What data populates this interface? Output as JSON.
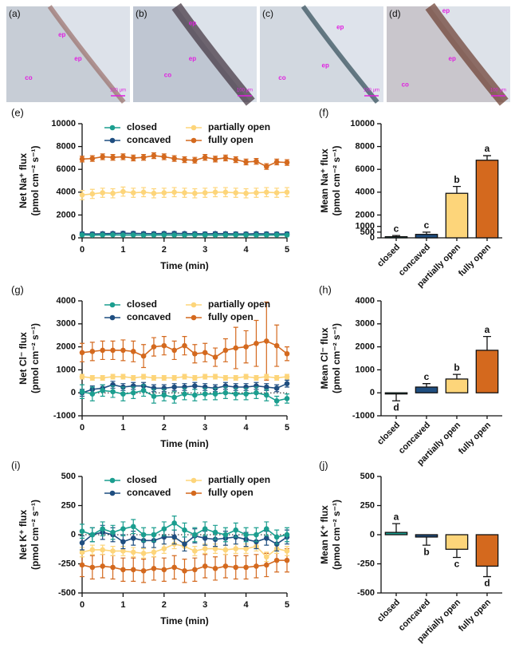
{
  "panels": [
    {
      "label": "(a)",
      "annotations": [
        "ep",
        "ep",
        "co"
      ],
      "scale": "100 μm"
    },
    {
      "label": "(b)",
      "annotations": [
        "ep",
        "ep",
        "co"
      ],
      "scale": "100 μm"
    },
    {
      "label": "(c)",
      "annotations": [
        "ep",
        "ep",
        "co"
      ],
      "scale": "100 μm"
    },
    {
      "label": "(d)",
      "annotations": [
        "ep",
        "ep",
        "co"
      ],
      "scale": "100 μm"
    }
  ],
  "chart_data": [
    {
      "type": "line",
      "panel_label": "(e)",
      "ylabel": [
        "Net Na⁺ flux",
        "(pmol cm⁻² s⁻¹)"
      ],
      "xlabel": "Time (min)",
      "x": [
        0,
        0.25,
        0.5,
        0.75,
        1,
        1.25,
        1.5,
        1.75,
        2,
        2.25,
        2.5,
        2.75,
        3,
        3.25,
        3.5,
        3.75,
        4,
        4.25,
        4.5,
        4.75,
        5
      ],
      "xlim": [
        0,
        5
      ],
      "xticks": [
        0,
        1,
        2,
        3,
        4,
        5
      ],
      "ylim": [
        0,
        10000
      ],
      "yticks": [
        0,
        2000,
        4000,
        6000,
        8000,
        10000
      ],
      "zero_line": false,
      "series": [
        {
          "name": "closed",
          "color": "#1b9e8f",
          "values": [
            250,
            230,
            250,
            260,
            240,
            250,
            230,
            240,
            250,
            240,
            230,
            250,
            240,
            230,
            240,
            250,
            240,
            230,
            240,
            250,
            240
          ],
          "errors": [
            80,
            80,
            80,
            80,
            80,
            80,
            80,
            80,
            80,
            80,
            80,
            80,
            80,
            80,
            80,
            80,
            80,
            80,
            80,
            80,
            80
          ]
        },
        {
          "name": "concaved",
          "color": "#1f4e80",
          "values": [
            350,
            340,
            360,
            380,
            400,
            390,
            370,
            360,
            380,
            390,
            370,
            360,
            350,
            370,
            360,
            350,
            340,
            360,
            350,
            340,
            350
          ],
          "errors": [
            150,
            150,
            150,
            150,
            150,
            150,
            150,
            150,
            150,
            150,
            150,
            150,
            150,
            150,
            150,
            150,
            150,
            150,
            150,
            150,
            150
          ]
        },
        {
          "name": "partially open",
          "color": "#fdd57a",
          "values": [
            3750,
            3850,
            3950,
            3900,
            4050,
            3950,
            4000,
            3900,
            3950,
            4000,
            3950,
            3900,
            3950,
            4000,
            4000,
            3950,
            3900,
            3950,
            4000,
            3950,
            4000
          ],
          "errors": [
            400,
            400,
            400,
            400,
            400,
            400,
            400,
            400,
            400,
            400,
            400,
            400,
            400,
            400,
            400,
            400,
            400,
            400,
            400,
            400,
            400
          ]
        },
        {
          "name": "fully open",
          "color": "#d4691e",
          "values": [
            6900,
            6950,
            7100,
            7050,
            7100,
            7000,
            7050,
            7200,
            7100,
            6950,
            6850,
            6800,
            7050,
            6900,
            7000,
            6850,
            6650,
            6700,
            6250,
            6650,
            6600
          ],
          "errors": [
            250,
            250,
            250,
            250,
            250,
            250,
            250,
            250,
            250,
            250,
            250,
            250,
            250,
            250,
            250,
            250,
            250,
            250,
            250,
            250,
            250
          ]
        }
      ]
    },
    {
      "type": "bar",
      "panel_label": "(f)",
      "ylabel": [
        "Mean Na⁺ flux",
        "(pmol cm⁻² s⁻¹)"
      ],
      "categories": [
        "closed",
        "concaved",
        "partially open",
        "fully open"
      ],
      "values": [
        100,
        300,
        3900,
        6800
      ],
      "errors": [
        100,
        200,
        600,
        400
      ],
      "annotations": [
        "c",
        "c",
        "b",
        "a"
      ],
      "colors": [
        "#1b9e8f",
        "#1f4e80",
        "#fdd57a",
        "#d4691e"
      ],
      "ylim": [
        0,
        10000
      ],
      "yticks": [
        0,
        500,
        1000,
        2000,
        4000,
        6000,
        8000,
        10000
      ]
    },
    {
      "type": "line",
      "panel_label": "(g)",
      "ylabel": [
        "Net Cl⁻ flux",
        "(pmol cm⁻² s⁻¹)"
      ],
      "xlabel": "Time (min)",
      "x": [
        0,
        0.25,
        0.5,
        0.75,
        1,
        1.25,
        1.5,
        1.75,
        2,
        2.25,
        2.5,
        2.75,
        3,
        3.25,
        3.5,
        3.75,
        4,
        4.25,
        4.5,
        4.75,
        5
      ],
      "xlim": [
        0,
        5
      ],
      "xticks": [
        0,
        1,
        2,
        3,
        4,
        5
      ],
      "ylim": [
        -1000,
        4000
      ],
      "yticks": [
        -1000,
        0,
        1000,
        2000,
        3000,
        4000
      ],
      "zero_line": true,
      "series": [
        {
          "name": "closed",
          "color": "#1b9e8f",
          "values": [
            50,
            -50,
            100,
            50,
            -50,
            0,
            100,
            -150,
            -100,
            -200,
            -50,
            -100,
            -50,
            -50,
            0,
            -50,
            -50,
            0,
            -100,
            -350,
            -250
          ],
          "errors": [
            300,
            300,
            250,
            250,
            300,
            250,
            250,
            300,
            250,
            250,
            250,
            250,
            250,
            250,
            250,
            250,
            250,
            250,
            250,
            200,
            200
          ]
        },
        {
          "name": "concaved",
          "color": "#1f4e80",
          "values": [
            0,
            150,
            200,
            350,
            250,
            300,
            300,
            200,
            200,
            250,
            250,
            300,
            250,
            200,
            300,
            250,
            250,
            300,
            250,
            200,
            400
          ],
          "errors": [
            150,
            150,
            150,
            150,
            150,
            150,
            150,
            150,
            150,
            150,
            150,
            150,
            150,
            150,
            150,
            150,
            150,
            150,
            150,
            150,
            150
          ]
        },
        {
          "name": "partially open",
          "color": "#fdd57a",
          "values": [
            700,
            650,
            650,
            700,
            700,
            650,
            700,
            650,
            650,
            650,
            700,
            650,
            700,
            700,
            650,
            650,
            700,
            650,
            700,
            650,
            700
          ],
          "errors": [
            100,
            100,
            100,
            100,
            100,
            100,
            100,
            100,
            100,
            100,
            100,
            100,
            100,
            100,
            100,
            100,
            100,
            100,
            100,
            100,
            100
          ]
        },
        {
          "name": "fully open",
          "color": "#d4691e",
          "values": [
            1750,
            1800,
            1850,
            1850,
            1850,
            1800,
            1600,
            2000,
            2050,
            1850,
            2050,
            1700,
            1750,
            1550,
            1850,
            1950,
            2000,
            2150,
            2250,
            2050,
            1700
          ],
          "errors": [
            400,
            400,
            400,
            400,
            450,
            450,
            500,
            400,
            400,
            400,
            400,
            400,
            400,
            400,
            500,
            900,
            700,
            1000,
            1700,
            900,
            300
          ]
        }
      ]
    },
    {
      "type": "bar",
      "panel_label": "(h)",
      "ylabel": [
        "Mean Cl⁻ flux",
        "(pmol cm⁻² s⁻¹)"
      ],
      "categories": [
        "closed",
        "concaved",
        "partially open",
        "fully open"
      ],
      "values": [
        -50,
        250,
        600,
        1850
      ],
      "errors": [
        300,
        150,
        200,
        600
      ],
      "annotations": [
        "d",
        "c",
        "b",
        "a"
      ],
      "colors": [
        "#1b9e8f",
        "#1f4e80",
        "#fdd57a",
        "#d4691e"
      ],
      "ylim": [
        -1000,
        4000
      ],
      "yticks": [
        -1000,
        0,
        1000,
        2000,
        3000,
        4000
      ]
    },
    {
      "type": "line",
      "panel_label": "(i)",
      "ylabel": [
        "Net K⁺ flux",
        "(pmol cm⁻² s⁻¹)"
      ],
      "xlabel": "Time (min)",
      "x": [
        0,
        0.25,
        0.5,
        0.75,
        1,
        1.25,
        1.5,
        1.75,
        2,
        2.25,
        2.5,
        2.75,
        3,
        3.25,
        3.5,
        3.75,
        4,
        4.25,
        4.5,
        4.75,
        5
      ],
      "xlim": [
        0,
        5
      ],
      "xticks": [
        0,
        1,
        2,
        3,
        4,
        5
      ],
      "ylim": [
        -500,
        500
      ],
      "yticks": [
        -500,
        -250,
        0,
        250,
        500
      ],
      "zero_line": true,
      "series": [
        {
          "name": "closed",
          "color": "#1b9e8f",
          "values": [
            30,
            0,
            50,
            20,
            50,
            70,
            0,
            0,
            50,
            100,
            40,
            0,
            50,
            20,
            0,
            40,
            0,
            0,
            50,
            -20,
            0
          ],
          "errors": [
            60,
            60,
            60,
            60,
            60,
            60,
            60,
            60,
            60,
            60,
            60,
            60,
            60,
            60,
            60,
            60,
            60,
            60,
            60,
            60,
            60
          ]
        },
        {
          "name": "concaved",
          "color": "#1f4e80",
          "values": [
            -70,
            0,
            20,
            0,
            -60,
            -30,
            -50,
            -50,
            -20,
            -20,
            -80,
            -10,
            -30,
            -40,
            -30,
            -20,
            -40,
            -60,
            -30,
            -80,
            -20
          ],
          "errors": [
            60,
            60,
            60,
            60,
            60,
            60,
            60,
            60,
            60,
            60,
            60,
            60,
            60,
            60,
            60,
            60,
            60,
            60,
            60,
            60,
            60
          ]
        },
        {
          "name": "partially open",
          "color": "#fdd57a",
          "values": [
            -150,
            -130,
            -130,
            -140,
            -140,
            -150,
            -160,
            -150,
            -120,
            -80,
            -100,
            -140,
            -120,
            -120,
            -130,
            -120,
            -120,
            -100,
            -190,
            -120,
            -140
          ],
          "errors": [
            40,
            40,
            40,
            40,
            40,
            40,
            40,
            40,
            40,
            40,
            40,
            40,
            40,
            40,
            40,
            40,
            40,
            40,
            40,
            40,
            40
          ]
        },
        {
          "name": "fully open",
          "color": "#d4691e",
          "values": [
            -260,
            -280,
            -270,
            -280,
            -300,
            -300,
            -310,
            -290,
            -300,
            -280,
            -310,
            -300,
            -270,
            -290,
            -270,
            -280,
            -280,
            -270,
            -260,
            -220,
            -220
          ],
          "errors": [
            100,
            100,
            100,
            100,
            100,
            100,
            100,
            100,
            100,
            100,
            100,
            100,
            100,
            100,
            100,
            100,
            100,
            100,
            100,
            100,
            100
          ]
        }
      ]
    },
    {
      "type": "bar",
      "panel_label": "(j)",
      "ylabel": [
        "Mean K⁺ flux",
        "(pmol cm⁻² s⁻¹)"
      ],
      "categories": [
        "closed",
        "concaved",
        "partially open",
        "fully open"
      ],
      "values": [
        20,
        -20,
        -125,
        -270
      ],
      "errors": [
        75,
        70,
        70,
        90
      ],
      "annotations": [
        "a",
        "b",
        "c",
        "d"
      ],
      "colors": [
        "#1b9e8f",
        "#1f4e80",
        "#fdd57a",
        "#d4691e"
      ],
      "ylim": [
        -500,
        500
      ],
      "yticks": [
        -500,
        -250,
        0,
        250,
        500
      ]
    }
  ]
}
